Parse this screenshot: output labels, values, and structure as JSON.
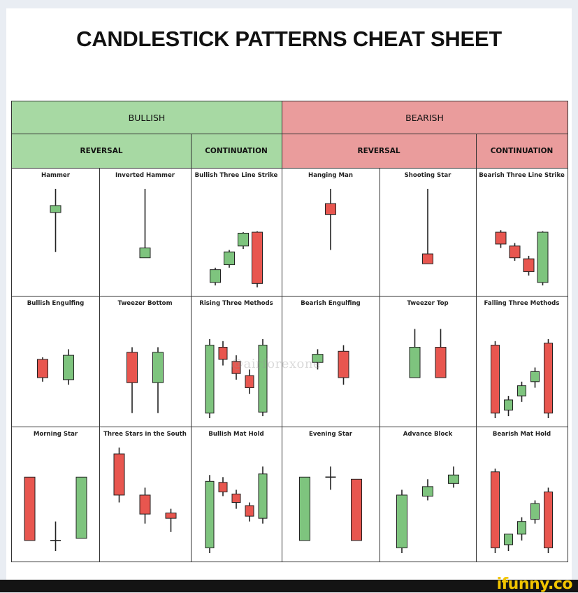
{
  "title": "CANDLESTICK PATTERNS CHEAT SHEET",
  "header": {
    "bullish": "BULLISH",
    "bearish": "BEARISH",
    "bullish_reversal": "REVERSAL",
    "bullish_continuation": "CONTINUATION",
    "bearish_reversal": "REVERSAL",
    "bearish_continuation": "CONTINUATION"
  },
  "colors": {
    "bull": "#7ec47e",
    "bear": "#e8564f",
    "header_green": "#a7d9a3",
    "header_red": "#ea9c9c"
  },
  "patterns": [
    {
      "name": "Hammer",
      "candles": [
        {
          "dir": "bull",
          "h": 100,
          "o": 83,
          "c": 76,
          "l": 36
        }
      ]
    },
    {
      "name": "Inverted Hammer",
      "candles": [
        {
          "dir": "bull",
          "h": 100,
          "o": 30,
          "c": 40,
          "l": 30
        }
      ]
    },
    {
      "name": "Bullish Three Line Strike",
      "candles": [
        {
          "dir": "bull",
          "h": 20,
          "o": 5,
          "c": 18,
          "l": 2
        },
        {
          "dir": "bull",
          "h": 38,
          "o": 23,
          "c": 36,
          "l": 20
        },
        {
          "dir": "bull",
          "h": 56,
          "o": 42,
          "c": 55,
          "l": 39
        },
        {
          "dir": "bear",
          "h": 57,
          "o": 56,
          "c": 4,
          "l": 0
        }
      ]
    },
    {
      "name": "Hanging Man",
      "candles": [
        {
          "dir": "bear",
          "h": 100,
          "o": 85,
          "c": 74,
          "l": 38
        }
      ]
    },
    {
      "name": "Shooting Star",
      "candles": [
        {
          "dir": "bear",
          "h": 100,
          "o": 34,
          "c": 24,
          "l": 24
        }
      ]
    },
    {
      "name": "Bearish Three Line Strike",
      "candles": [
        {
          "dir": "bear",
          "h": 58,
          "o": 56,
          "c": 44,
          "l": 40
        },
        {
          "dir": "bear",
          "h": 45,
          "o": 42,
          "c": 30,
          "l": 27
        },
        {
          "dir": "bear",
          "h": 32,
          "o": 29,
          "c": 16,
          "l": 12
        },
        {
          "dir": "bull",
          "h": 57,
          "o": 5,
          "c": 56,
          "l": 2
        }
      ]
    },
    {
      "name": "Bullish Engulfing",
      "candles": [
        {
          "dir": "bear",
          "h": 60,
          "o": 58,
          "c": 40,
          "l": 36
        },
        {
          "dir": "bull",
          "h": 68,
          "o": 38,
          "c": 62,
          "l": 33
        }
      ]
    },
    {
      "name": "Tweezer Bottom",
      "candles": [
        {
          "dir": "bear",
          "h": 70,
          "o": 65,
          "c": 35,
          "l": 5
        },
        {
          "dir": "bull",
          "h": 70,
          "o": 35,
          "c": 65,
          "l": 5
        }
      ]
    },
    {
      "name": "Rising Three Methods",
      "candles": [
        {
          "dir": "bull",
          "h": 78,
          "o": 5,
          "c": 72,
          "l": 0
        },
        {
          "dir": "bear",
          "h": 76,
          "o": 70,
          "c": 58,
          "l": 52
        },
        {
          "dir": "bear",
          "h": 62,
          "o": 56,
          "c": 44,
          "l": 38
        },
        {
          "dir": "bear",
          "h": 48,
          "o": 42,
          "c": 30,
          "l": 24
        },
        {
          "dir": "bull",
          "h": 78,
          "o": 6,
          "c": 72,
          "l": 2
        }
      ]
    },
    {
      "name": "Bearish Engulfing",
      "candles": [
        {
          "dir": "bull",
          "h": 68,
          "o": 55,
          "c": 63,
          "l": 48
        },
        {
          "dir": "bear",
          "h": 72,
          "o": 66,
          "c": 40,
          "l": 33
        }
      ]
    },
    {
      "name": "Tweezer Top",
      "candles": [
        {
          "dir": "bull",
          "h": 88,
          "o": 40,
          "c": 70,
          "l": 40
        },
        {
          "dir": "bear",
          "h": 88,
          "o": 70,
          "c": 40,
          "l": 40
        }
      ]
    },
    {
      "name": "Falling Three Methods",
      "candles": [
        {
          "dir": "bear",
          "h": 76,
          "o": 72,
          "c": 5,
          "l": 0
        },
        {
          "dir": "bull",
          "h": 22,
          "o": 8,
          "c": 18,
          "l": 2
        },
        {
          "dir": "bull",
          "h": 36,
          "o": 22,
          "c": 32,
          "l": 16
        },
        {
          "dir": "bull",
          "h": 50,
          "o": 36,
          "c": 46,
          "l": 30
        },
        {
          "dir": "bear",
          "h": 78,
          "o": 74,
          "c": 5,
          "l": 0
        }
      ]
    },
    {
      "name": "Morning Star",
      "candles": [
        {
          "dir": "bear",
          "h": 72,
          "o": 72,
          "c": 12,
          "l": 12
        },
        {
          "dir": "bull",
          "h": 30,
          "o": 12,
          "c": 12,
          "l": 2
        },
        {
          "dir": "bull",
          "h": 72,
          "o": 14,
          "c": 72,
          "l": 14
        }
      ]
    },
    {
      "name": "Three Stars in the South",
      "candles": [
        {
          "dir": "bear",
          "h": 100,
          "o": 94,
          "c": 55,
          "l": 48
        },
        {
          "dir": "bear",
          "h": 62,
          "o": 55,
          "c": 37,
          "l": 28
        },
        {
          "dir": "bear",
          "h": 42,
          "o": 38,
          "c": 33,
          "l": 20
        }
      ]
    },
    {
      "name": "Bullish Mat Hold",
      "candles": [
        {
          "dir": "bull",
          "h": 74,
          "o": 5,
          "c": 68,
          "l": 0
        },
        {
          "dir": "bear",
          "h": 72,
          "o": 67,
          "c": 58,
          "l": 54
        },
        {
          "dir": "bear",
          "h": 60,
          "o": 56,
          "c": 48,
          "l": 42
        },
        {
          "dir": "bear",
          "h": 48,
          "o": 45,
          "c": 35,
          "l": 30
        },
        {
          "dir": "bull",
          "h": 82,
          "o": 33,
          "c": 75,
          "l": 28
        }
      ]
    },
    {
      "name": "Evening Star",
      "candles": [
        {
          "dir": "bull",
          "h": 72,
          "o": 12,
          "c": 72,
          "l": 12
        },
        {
          "dir": "bull",
          "h": 82,
          "o": 72,
          "c": 72,
          "l": 60
        },
        {
          "dir": "bear",
          "h": 70,
          "o": 70,
          "c": 12,
          "l": 12
        }
      ]
    },
    {
      "name": "Advance Block",
      "candles": [
        {
          "dir": "bull",
          "h": 60,
          "o": 5,
          "c": 55,
          "l": 0
        },
        {
          "dir": "bull",
          "h": 70,
          "o": 54,
          "c": 63,
          "l": 50
        },
        {
          "dir": "bull",
          "h": 82,
          "o": 66,
          "c": 74,
          "l": 62
        }
      ]
    },
    {
      "name": "Bearish Mat Hold",
      "candles": [
        {
          "dir": "bear",
          "h": 80,
          "o": 77,
          "c": 5,
          "l": 0
        },
        {
          "dir": "bull",
          "h": 18,
          "o": 8,
          "c": 18,
          "l": 2
        },
        {
          "dir": "bull",
          "h": 34,
          "o": 18,
          "c": 30,
          "l": 12
        },
        {
          "dir": "bull",
          "h": 50,
          "o": 32,
          "c": 47,
          "l": 28
        },
        {
          "dir": "bear",
          "h": 62,
          "o": 58,
          "c": 5,
          "l": 0
        }
      ]
    }
  ],
  "watermark": "@airforexone",
  "footer": {
    "logo": "ifunny.co"
  }
}
